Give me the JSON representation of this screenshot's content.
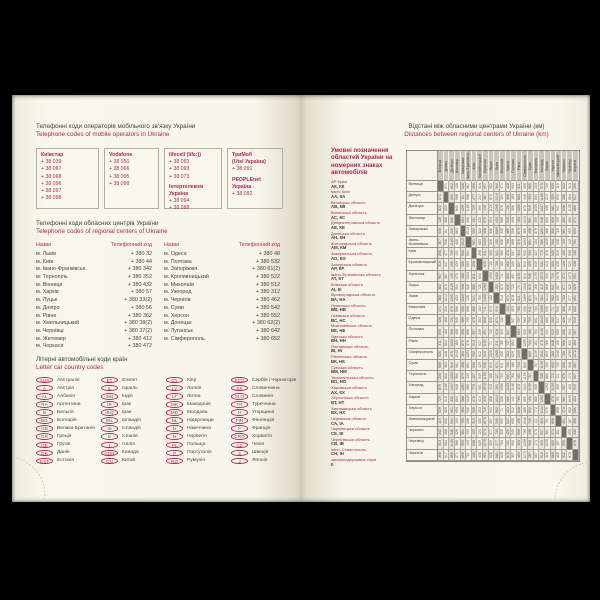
{
  "accent_color": "#ad2a4d",
  "page_color": "#f8f6ea",
  "left_page": {
    "mobile": {
      "title_uk": "Телефонні коди операторів мобільного зв'язку України",
      "title_en": "Telephone codes of mobile operators in Ukraine",
      "operators": [
        {
          "groups": [
            {
              "name_lines": [
                "Київстар"
              ],
              "codes": [
                "+ 38 039",
                "+ 38 067",
                "+ 38 068",
                "+ 38 096",
                "+ 38 097",
                "+ 38 098"
              ]
            }
          ]
        },
        {
          "groups": [
            {
              "name_lines": [
                "Vodafone"
              ],
              "codes": [
                "+ 38 050",
                "+ 38 066",
                "+ 38 095",
                "+ 38 099"
              ]
            }
          ]
        },
        {
          "groups": [
            {
              "name_lines": [
                "lifecell (life:))"
              ],
              "codes": [
                "+ 38 063",
                "+ 38 093",
                "+ 38 073"
              ]
            },
            {
              "name_lines": [
                "Інтертелеком Україна"
              ],
              "codes": [
                "+ 38 094",
                "+ 38 089"
              ]
            }
          ]
        },
        {
          "groups": [
            {
              "name_lines": [
                "ТриМоб",
                "(Utel Україна)"
              ],
              "codes": [
                "+ 38 091"
              ]
            },
            {
              "name_lines": [
                "PEOPLEnet",
                "Україна"
              ],
              "codes": [
                "+ 38 092"
              ]
            }
          ]
        }
      ]
    },
    "regional": {
      "title_uk": "Телефонні коди обласних центрів України",
      "title_en": "Telephone codes of regional centers of Ukraine",
      "header_name": "Назва",
      "header_code": "Телефонний код",
      "left_rows": [
        [
          "м. Львів",
          "+ 380 32"
        ],
        [
          "м. Київ",
          "+ 380 44"
        ],
        [
          "м. Івано-Франківськ",
          "+ 380 342"
        ],
        [
          "м. Тернопіль",
          "+ 380 352"
        ],
        [
          "м. Вінниця",
          "+ 380 432"
        ],
        [
          "м. Харків",
          "+ 380 57"
        ],
        [
          "м. Луцьк",
          "+ 380 33(2)"
        ],
        [
          "м. Дніпро",
          "+ 380 56"
        ],
        [
          "м. Рівне",
          "+ 380 362"
        ],
        [
          "м. Хмельницький",
          "+ 380 38(2)"
        ],
        [
          "м. Чернівці",
          "+ 380 37(2)"
        ],
        [
          "м. Житомир",
          "+ 380 412"
        ],
        [
          "м. Черкаси",
          "+ 380 472"
        ]
      ],
      "right_rows": [
        [
          "м. Одеса",
          "+ 380 48"
        ],
        [
          "м. Полтава",
          "+ 380 532"
        ],
        [
          "м. Запоріжжя",
          "+ 380 61(2)"
        ],
        [
          "м. Кропивницький",
          "+ 380 522"
        ],
        [
          "м. Миколаїв",
          "+ 380 512"
        ],
        [
          "м. Ужгород",
          "+ 380 312"
        ],
        [
          "м. Чернігів",
          "+ 380 462"
        ],
        [
          "м. Суми",
          "+ 380 542"
        ],
        [
          "м. Херсон",
          "+ 380 552"
        ],
        [
          "м. Донецьк",
          "+ 380 62(2)"
        ],
        [
          "м. Луганськ",
          "+ 380 642"
        ],
        [
          "м. Сімферополь",
          "+ 380 652"
        ]
      ]
    },
    "car_codes": {
      "title_uk": "Літерні автомобільні коди країн",
      "title_en": "Letter car country codes",
      "columns": [
        [
          {
            "code": "AUS",
            "country": "Австралія"
          },
          {
            "code": "A",
            "country": "Австрія"
          },
          {
            "code": "AL",
            "country": "Албанія"
          },
          {
            "code": "RA",
            "country": "Аргентина"
          },
          {
            "code": "B",
            "country": "Бельгія"
          },
          {
            "code": "BG",
            "country": "Болгарія"
          },
          {
            "code": "GB",
            "country": "Велика Британія"
          },
          {
            "code": "GR",
            "country": "Греція"
          },
          {
            "code": "GE",
            "country": "Грузія"
          },
          {
            "code": "DK",
            "country": "Данія"
          },
          {
            "code": "EST",
            "country": "Естонія"
          }
        ],
        [
          {
            "code": "ET",
            "country": "Єгипет"
          },
          {
            "code": "IL",
            "country": "Ізраїль"
          },
          {
            "code": "IND",
            "country": "Індія"
          },
          {
            "code": "IR",
            "country": "Ірак"
          },
          {
            "code": "IRQ",
            "country": "Іран"
          },
          {
            "code": "IRL",
            "country": "Ірландія"
          },
          {
            "code": "IS",
            "country": "Ісландія"
          },
          {
            "code": "E",
            "country": "Іспанія"
          },
          {
            "code": "I",
            "country": "Італія"
          },
          {
            "code": "CDN",
            "country": "Канада"
          },
          {
            "code": "CN",
            "country": "Китай"
          }
        ],
        [
          {
            "code": "CY",
            "country": "Кіпр"
          },
          {
            "code": "LV",
            "country": "Латвія"
          },
          {
            "code": "LT",
            "country": "Литва"
          },
          {
            "code": "MK",
            "country": "Македонія"
          },
          {
            "code": "MD",
            "country": "Молдова"
          },
          {
            "code": "NL",
            "country": "Нідерланди"
          },
          {
            "code": "D",
            "country": "Німеччина"
          },
          {
            "code": "N",
            "country": "Норвегія"
          },
          {
            "code": "PL",
            "country": "Польща"
          },
          {
            "code": "P",
            "country": "Португалія"
          },
          {
            "code": "RO",
            "country": "Румунія"
          }
        ],
        [
          {
            "code": "SCG",
            "country": "Сербія і Чорногорія"
          },
          {
            "code": "SK",
            "country": "Словаччина"
          },
          {
            "code": "SLO",
            "country": "Словенія"
          },
          {
            "code": "TR",
            "country": "Туреччина"
          },
          {
            "code": "H",
            "country": "Угорщина"
          },
          {
            "code": "FIN",
            "country": "Фінляндія"
          },
          {
            "code": "F",
            "country": "Франція"
          },
          {
            "code": "CRO",
            "country": "Хорватія"
          },
          {
            "code": "CZ",
            "country": "Чехія"
          },
          {
            "code": "S",
            "country": "Швеція"
          },
          {
            "code": "J",
            "country": "Японія"
          }
        ]
      ]
    }
  },
  "right_page": {
    "title_uk": "Відстані між обласними центрами України (км)",
    "title_en": "Distances between regional centers of Ukraine (km)",
    "legend_title": "Умовні позначення областей України на номерних знаках автомобілів",
    "legend": [
      {
        "region": "АР Крим",
        "codes": "АК, КК"
      },
      {
        "region": "місто Київ",
        "codes": "АА, КА"
      },
      {
        "region": "Вінницька область",
        "codes": "АВ, КВ"
      },
      {
        "region": "Волинська область",
        "codes": "АС, КС"
      },
      {
        "region": "Дніпропетровська область",
        "codes": "АЕ, КЕ"
      },
      {
        "region": "Донецька область",
        "codes": "АН, КН"
      },
      {
        "region": "Житомирська область",
        "codes": "АМ, КМ"
      },
      {
        "region": "Закарпатська область",
        "codes": "АО, КО"
      },
      {
        "region": "Запорізька область",
        "codes": "АР, КР"
      },
      {
        "region": "Івано-Франківська область",
        "codes": "АТ, КТ"
      },
      {
        "region": "Київська область",
        "codes": "АІ, КІ"
      },
      {
        "region": "Кіровоградська область",
        "codes": "ВА, НА"
      },
      {
        "region": "Луганська область",
        "codes": "ВВ, НВ"
      },
      {
        "region": "Львівська область",
        "codes": "ВС, НС"
      },
      {
        "region": "Миколаївська область",
        "codes": "ВЕ, НЕ"
      },
      {
        "region": "Одеська область",
        "codes": "ВН, НН"
      },
      {
        "region": "Полтавська область",
        "codes": "ВІ, НІ"
      },
      {
        "region": "Рівненська область",
        "codes": "ВК, НК"
      },
      {
        "region": "Сумська область",
        "codes": "ВМ, НМ"
      },
      {
        "region": "Тернопільська область",
        "codes": "ВО, НО"
      },
      {
        "region": "Харківська область",
        "codes": "АХ, КХ"
      },
      {
        "region": "Херсонська область",
        "codes": "ВТ, НТ"
      },
      {
        "region": "Хмельницька область",
        "codes": "ВХ, НХ"
      },
      {
        "region": "Черкаська область",
        "codes": "СА, ІА"
      },
      {
        "region": "Чернівецька область",
        "codes": "СЕ, ІЕ"
      },
      {
        "region": "Чернігівська область",
        "codes": "СВ, ІВ"
      },
      {
        "region": "місто Севастополь",
        "codes": "СН, ІН"
      },
      {
        "region": "загальнодержавна серія",
        "codes": "ІІ"
      }
    ]
  },
  "chart_data": {
    "type": "table",
    "title": "Відстані між обласними центрами України (км)",
    "cities": [
      "Вінниця",
      "Дніпро",
      "Донецьк",
      "Житомир",
      "Запоріжжя",
      "Івано-Франківськ",
      "Київ",
      "Кропивницький",
      "Луганськ",
      "Луцьк",
      "Львів",
      "Миколаїв",
      "Одеса",
      "Полтава",
      "Рівне",
      "Сімферополь",
      "Суми",
      "Тернопіль",
      "Ужгород",
      "Харків",
      "Херсон",
      "Хмельницький",
      "Черкаси",
      "Чернівці",
      "Чернігів"
    ],
    "matrix": [
      [
        null,
        571,
        822,
        128,
        646,
        367,
        256,
        316,
        957,
        382,
        360,
        471,
        428,
        593,
        311,
        926,
        686,
        233,
        575,
        729,
        539,
        119,
        342,
        313,
        396
      ],
      [
        571,
        null,
        252,
        588,
        81,
        938,
        477,
        247,
        387,
        873,
        1014,
        324,
        468,
        183,
        804,
        446,
        363,
        804,
        1186,
        213,
        329,
        690,
        286,
        884,
        617
      ],
      [
        822,
        252,
        null,
        840,
        229,
        1189,
        729,
        499,
        135,
        1125,
        1265,
        576,
        720,
        356,
        1056,
        675,
        516,
        1055,
        1437,
        335,
        581,
        941,
        538,
        1135,
        869
      ],
      [
        128,
        588,
        840,
        null,
        663,
        440,
        131,
        433,
        975,
        254,
        433,
        588,
        545,
        468,
        183,
        1043,
        561,
        306,
        648,
        604,
        656,
        192,
        329,
        386,
        271
      ],
      [
        646,
        81,
        229,
        663,
        null,
        1013,
        552,
        322,
        408,
        948,
        1089,
        345,
        489,
        258,
        879,
        365,
        438,
        879,
        1261,
        288,
        350,
        765,
        361,
        959,
        692
      ],
      [
        367,
        938,
        1189,
        440,
        1013,
        null,
        561,
        683,
        1324,
        326,
        135,
        838,
        795,
        898,
        376,
        1293,
        891,
        134,
        280,
        1039,
        906,
        248,
        709,
        143,
        701
      ],
      [
        256,
        477,
        729,
        131,
        552,
        561,
        null,
        298,
        811,
        385,
        541,
        480,
        475,
        337,
        314,
        932,
        330,
        427,
        779,
        478,
        545,
        315,
        192,
        538,
        140
      ],
      [
        316,
        247,
        499,
        433,
        322,
        683,
        298,
        null,
        634,
        720,
        759,
        182,
        302,
        249,
        627,
        612,
        429,
        549,
        931,
        413,
        253,
        435,
        124,
        629,
        438
      ],
      [
        957,
        387,
        135,
        975,
        408,
        1324,
        811,
        634,
        null,
        1260,
        1400,
        711,
        855,
        491,
        1191,
        810,
        545,
        1190,
        1572,
        333,
        716,
        1076,
        673,
        1270,
        951
      ],
      [
        382,
        873,
        1125,
        254,
        948,
        326,
        385,
        720,
        1260,
        null,
        152,
        873,
        830,
        722,
        71,
        1328,
        815,
        166,
        412,
        858,
        941,
        267,
        577,
        329,
        525
      ],
      [
        360,
        1014,
        1265,
        433,
        1089,
        135,
        541,
        759,
        1400,
        152,
        null,
        914,
        871,
        878,
        211,
        1369,
        871,
        127,
        261,
        1014,
        982,
        245,
        733,
        277,
        681
      ],
      [
        471,
        324,
        576,
        588,
        345,
        838,
        480,
        182,
        711,
        873,
        914,
        null,
        132,
        403,
        780,
        430,
        611,
        704,
        1086,
        536,
        71,
        590,
        306,
        784,
        620
      ],
      [
        428,
        468,
        720,
        545,
        489,
        795,
        475,
        302,
        855,
        830,
        871,
        132,
        null,
        547,
        737,
        562,
        755,
        661,
        1043,
        680,
        203,
        547,
        426,
        741,
        615
      ],
      [
        593,
        183,
        356,
        468,
        258,
        898,
        337,
        249,
        491,
        722,
        878,
        403,
        547,
        null,
        653,
        629,
        180,
        764,
        1146,
        141,
        512,
        655,
        245,
        904,
        357
      ],
      [
        311,
        804,
        1056,
        183,
        879,
        376,
        314,
        627,
        1191,
        71,
        211,
        780,
        737,
        653,
        null,
        1259,
        744,
        161,
        473,
        789,
        848,
        196,
        506,
        324,
        454
      ],
      [
        926,
        446,
        675,
        1043,
        365,
        1293,
        932,
        612,
        810,
        1328,
        1369,
        430,
        562,
        629,
        1259,
        null,
        809,
        1159,
        1541,
        659,
        285,
        1045,
        736,
        1239,
        1072
      ],
      [
        686,
        363,
        516,
        561,
        438,
        891,
        330,
        429,
        545,
        815,
        871,
        611,
        755,
        180,
        744,
        809,
        null,
        757,
        1139,
        190,
        692,
        745,
        335,
        928,
        287
      ],
      [
        233,
        804,
        1055,
        306,
        879,
        134,
        427,
        549,
        1190,
        166,
        127,
        704,
        661,
        764,
        161,
        1159,
        757,
        null,
        338,
        880,
        772,
        111,
        575,
        174,
        567
      ],
      [
        575,
        1186,
        1437,
        648,
        1261,
        280,
        779,
        931,
        1572,
        412,
        261,
        1086,
        1043,
        1146,
        473,
        1541,
        1139,
        338,
        null,
        1262,
        1154,
        453,
        957,
        423,
        919
      ],
      [
        729,
        213,
        335,
        604,
        288,
        1039,
        478,
        413,
        333,
        858,
        1014,
        536,
        680,
        141,
        789,
        659,
        190,
        880,
        1262,
        null,
        576,
        791,
        381,
        1045,
        424
      ],
      [
        539,
        329,
        581,
        656,
        350,
        906,
        545,
        253,
        716,
        941,
        982,
        71,
        203,
        512,
        848,
        285,
        692,
        772,
        1154,
        576,
        null,
        658,
        374,
        852,
        685
      ],
      [
        119,
        690,
        941,
        192,
        765,
        248,
        315,
        435,
        1076,
        267,
        245,
        590,
        547,
        655,
        196,
        1045,
        745,
        111,
        453,
        791,
        658,
        null,
        461,
        187,
        455
      ],
      [
        342,
        286,
        538,
        329,
        361,
        709,
        192,
        124,
        673,
        577,
        733,
        306,
        426,
        245,
        506,
        736,
        335,
        575,
        957,
        381,
        374,
        461,
        null,
        655,
        332
      ],
      [
        313,
        884,
        1135,
        386,
        959,
        143,
        538,
        629,
        1270,
        329,
        277,
        784,
        741,
        904,
        324,
        1239,
        928,
        174,
        423,
        1045,
        852,
        187,
        655,
        null,
        678
      ],
      [
        396,
        617,
        869,
        271,
        692,
        701,
        140,
        438,
        951,
        525,
        681,
        620,
        615,
        357,
        454,
        1072,
        287,
        567,
        919,
        424,
        685,
        455,
        332,
        678,
        null
      ]
    ]
  }
}
